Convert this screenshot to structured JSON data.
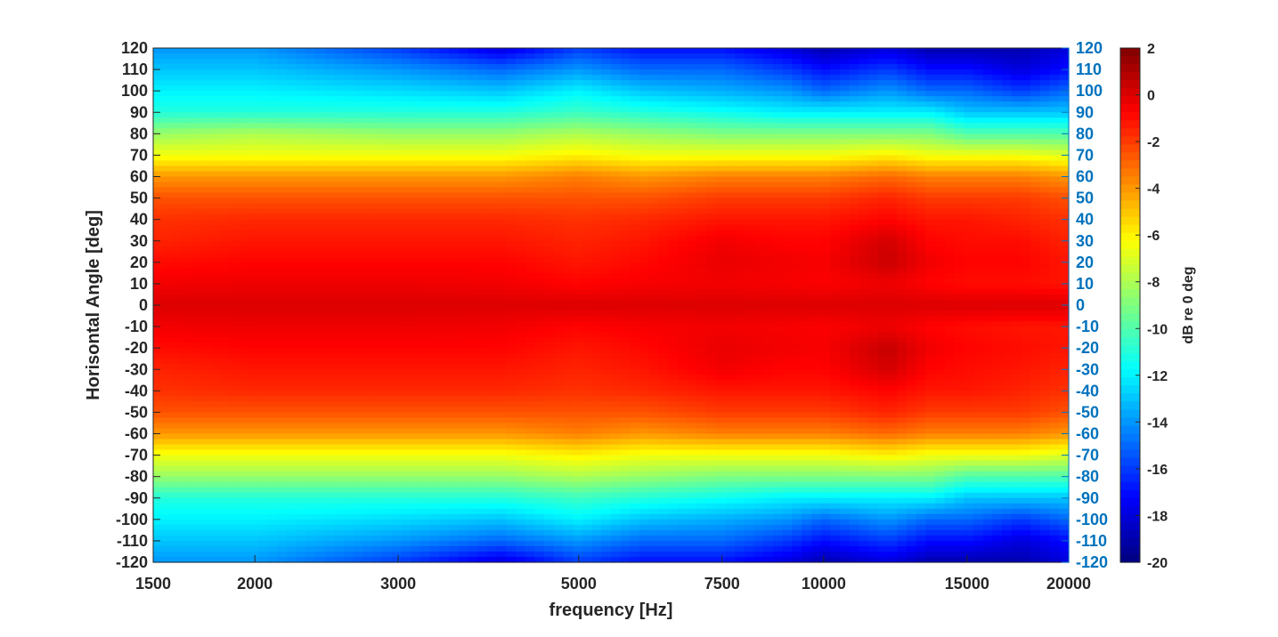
{
  "chart_data": {
    "type": "heatmap",
    "title": "",
    "xlabel": "frequency [Hz]",
    "ylabel": "Horisontal Angle [deg]",
    "colorbar_label": "dB re 0 deg",
    "x_scale": "log",
    "xlim": [
      1500,
      20000
    ],
    "ylim": [
      -120,
      120
    ],
    "clim": [
      -20,
      2
    ],
    "colormap": "jet",
    "x_ticks": [
      1500,
      2000,
      3000,
      5000,
      7500,
      10000,
      15000,
      20000
    ],
    "x_tick_labels": [
      "1500",
      "2000",
      "3000",
      "5000",
      "7500",
      "10000",
      "15000",
      "20000"
    ],
    "y_ticks": [
      -120,
      -110,
      -100,
      -90,
      -80,
      -70,
      -60,
      -50,
      -40,
      -30,
      -20,
      -10,
      0,
      10,
      20,
      30,
      40,
      50,
      60,
      70,
      80,
      90,
      100,
      110,
      120
    ],
    "y_tick_labels": [
      "-120",
      "-110",
      "-100",
      "-90",
      "-80",
      "-70",
      "-60",
      "-50",
      "-40",
      "-30",
      "-20",
      "-10",
      "0",
      "10",
      "20",
      "30",
      "40",
      "50",
      "60",
      "70",
      "80",
      "90",
      "100",
      "110",
      "120"
    ],
    "right_axis_color": "#0072bd",
    "colorbar_ticks": [
      -20,
      -18,
      -16,
      -14,
      -12,
      -10,
      -8,
      -6,
      -4,
      -2,
      0,
      2
    ],
    "colorbar_tick_labels": [
      "-20",
      "-18",
      "-16",
      "-14",
      "-12",
      "-10",
      "-8",
      "-6",
      "-4",
      "-2",
      "0",
      "2"
    ],
    "angles": [
      -120,
      -110,
      -100,
      -90,
      -80,
      -70,
      -60,
      -50,
      -40,
      -30,
      -20,
      -10,
      0,
      10,
      20,
      30,
      40,
      50,
      60,
      70,
      80,
      90,
      100,
      110,
      120
    ],
    "frequencies": [
      1500,
      2000,
      3000,
      4000,
      5000,
      6000,
      7500,
      9000,
      10000,
      12000,
      13500,
      15000,
      17500,
      20000
    ],
    "values": [
      [
        -14,
        -14,
        -16,
        -18,
        -16,
        -17,
        -17,
        -18,
        -19,
        -18,
        -19,
        -19,
        -19,
        -18
      ],
      [
        -13,
        -13,
        -14,
        -15,
        -14,
        -15,
        -15,
        -16,
        -17,
        -16,
        -17,
        -17,
        -18,
        -17
      ],
      [
        -12,
        -12,
        -12.5,
        -13,
        -12,
        -13,
        -13.5,
        -14,
        -15,
        -14,
        -15,
        -15,
        -16,
        -15
      ],
      [
        -11,
        -11,
        -11,
        -11,
        -10.5,
        -11,
        -11.5,
        -12,
        -12,
        -12,
        -12,
        -13,
        -13,
        -13
      ],
      [
        -8.5,
        -8.5,
        -8.5,
        -8.5,
        -8,
        -8.5,
        -9,
        -9,
        -9,
        -9,
        -9,
        -10,
        -10,
        -10
      ],
      [
        -6.5,
        -6.5,
        -6.5,
        -6.5,
        -6,
        -6.5,
        -6.5,
        -6.5,
        -6.5,
        -6,
        -6.5,
        -6.5,
        -6.5,
        -7
      ],
      [
        -4,
        -4,
        -4,
        -4,
        -3.5,
        -4,
        -3.5,
        -3.5,
        -3.5,
        -3,
        -3.5,
        -3.5,
        -3.5,
        -4
      ],
      [
        -2.5,
        -2.5,
        -2.5,
        -2.5,
        -2.5,
        -2.5,
        -2,
        -2,
        -2,
        -1.5,
        -2,
        -2,
        -2,
        -2.5
      ],
      [
        -1.8,
        -1.6,
        -1.6,
        -1.6,
        -1.8,
        -1.6,
        -1.2,
        -1.2,
        -1.2,
        -0.8,
        -1.2,
        -1.2,
        -1.5,
        -1.8
      ],
      [
        -1.5,
        -1.2,
        -1.2,
        -1.2,
        -1.5,
        -1.2,
        -0.5,
        -0.8,
        -0.8,
        0.2,
        -0.8,
        -1.0,
        -1.2,
        -1.5
      ],
      [
        -1.0,
        -0.8,
        -0.8,
        -0.8,
        -1.2,
        -0.9,
        -0.3,
        -0.5,
        -0.6,
        0.5,
        -0.5,
        -0.8,
        -1.0,
        -1.2
      ],
      [
        -0.5,
        -0.4,
        -0.4,
        -0.5,
        -0.8,
        -0.6,
        -0.5,
        -0.6,
        -0.7,
        -0.4,
        -0.8,
        -1.0,
        -1.2,
        -1.2
      ],
      [
        0,
        0,
        0,
        0,
        0,
        0,
        0,
        0,
        0,
        0,
        0,
        0,
        0,
        0
      ],
      [
        -0.5,
        -0.4,
        -0.4,
        -0.5,
        -0.8,
        -0.6,
        -0.5,
        -0.6,
        -0.7,
        -0.4,
        -0.8,
        -1.0,
        -1.0,
        -1.2
      ],
      [
        -1.0,
        -0.8,
        -0.8,
        -0.8,
        -1.2,
        -0.9,
        -0.3,
        -0.5,
        -0.6,
        0.4,
        -0.5,
        -0.8,
        -0.8,
        -1.2
      ],
      [
        -1.5,
        -1.2,
        -1.2,
        -1.2,
        -1.5,
        -1.2,
        -0.5,
        -0.8,
        -0.8,
        0.2,
        -0.8,
        -1.0,
        -1.0,
        -1.5
      ],
      [
        -1.8,
        -1.6,
        -1.6,
        -1.6,
        -1.8,
        -1.6,
        -1.2,
        -1.2,
        -1.2,
        -0.8,
        -1.2,
        -1.2,
        -1.5,
        -1.8
      ],
      [
        -2.5,
        -2.5,
        -2.5,
        -2.5,
        -2.5,
        -2.5,
        -2,
        -2,
        -2,
        -1.5,
        -2,
        -2,
        -2,
        -2.5
      ],
      [
        -4,
        -4,
        -4,
        -4,
        -3.5,
        -4,
        -3.5,
        -3.5,
        -3.5,
        -3,
        -3.5,
        -3.5,
        -3.5,
        -4
      ],
      [
        -6.5,
        -6.5,
        -6.5,
        -6.5,
        -6,
        -6.5,
        -6.5,
        -6.5,
        -6.5,
        -6,
        -6.5,
        -6.5,
        -6.5,
        -7
      ],
      [
        -8.5,
        -8,
        -8.5,
        -8.5,
        -8,
        -8.5,
        -9,
        -9,
        -9,
        -9,
        -9,
        -10,
        -10,
        -10
      ],
      [
        -11,
        -11,
        -11,
        -11,
        -10.5,
        -11,
        -11.5,
        -12,
        -12,
        -12,
        -12,
        -13,
        -13,
        -13
      ],
      [
        -12,
        -12,
        -12.5,
        -13,
        -12,
        -13,
        -13.5,
        -14,
        -15,
        -14,
        -15,
        -15,
        -16,
        -15
      ],
      [
        -13,
        -13,
        -14,
        -15,
        -14,
        -15,
        -15,
        -16,
        -17,
        -16,
        -17,
        -17,
        -18,
        -17
      ],
      [
        -14,
        -14,
        -16,
        -18,
        -16,
        -17,
        -17,
        -18,
        -19,
        -18,
        -19,
        -19,
        -19,
        -18
      ]
    ]
  }
}
